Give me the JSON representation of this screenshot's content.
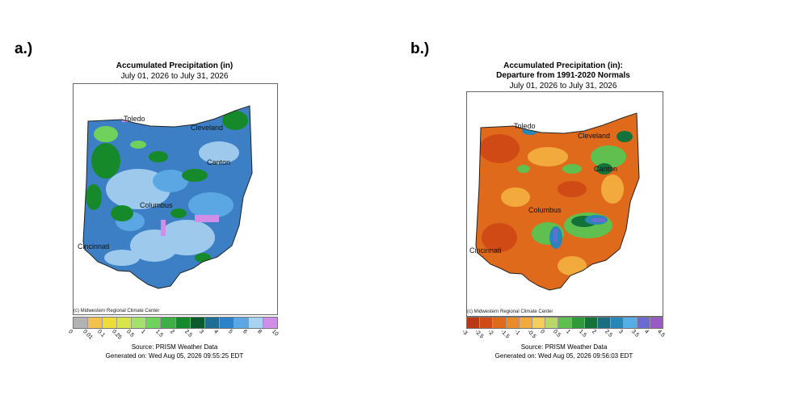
{
  "panel_a": {
    "label": "a.)",
    "title": "Accumulated Precipitation (in)",
    "subtitle": "July 01, 2026 to July 31, 2026",
    "credit": "(c) Midwestern Regional Climate Center",
    "source": "Source: PRISM Weather Data",
    "generated": "Generated on: Wed Aug 05, 2026 09:55:25 EDT",
    "cities": [
      "Toledo",
      "Cleveland",
      "Canton",
      "Columbus",
      "Cincinnati"
    ],
    "legend_colors": [
      "#b2b2b2",
      "#f2c14e",
      "#eedc3b",
      "#d9e34c",
      "#a3e06c",
      "#6fd25a",
      "#3fae45",
      "#168a2a",
      "#0b5a2e",
      "#1f6d94",
      "#2c82c9",
      "#5aa7e3",
      "#a8d2f2",
      "#d18ee8"
    ],
    "legend_ticks": [
      "0",
      "0.01",
      "0.1",
      "0.25",
      "0.5",
      "1",
      "1.5",
      "2",
      "2.5",
      "3",
      "4",
      "5",
      "6",
      "8",
      "10"
    ]
  },
  "panel_b": {
    "label": "b.)",
    "title": "Accumulated Precipitation (in):",
    "title2": "Departure from 1991-2020 Normals",
    "subtitle": "July 01, 2026 to July 31, 2026",
    "credit": "(c) Midwestern Regional Climate Center",
    "source": "Source: PRISM Weather Data",
    "generated": "Generated on: Wed Aug 05, 2026 09:56:03 EDT",
    "cities": [
      "Toledo",
      "Cleveland",
      "Canton",
      "Columbus",
      "Cincinnati"
    ],
    "legend_colors": [
      "#b73a12",
      "#cf4a14",
      "#e06a1c",
      "#ea8a2a",
      "#f2aa3d",
      "#f3cf5a",
      "#b9d66a",
      "#5fc04f",
      "#2f9a3a",
      "#13723a",
      "#1b6e82",
      "#2a86b8",
      "#56aee6",
      "#6b6bd1",
      "#9a5ac6"
    ],
    "legend_ticks": [
      "-3",
      "-2.5",
      "-2",
      "-1.5",
      "-1",
      "-0.5",
      "0",
      "0.5",
      "1",
      "1.5",
      "2",
      "2.5",
      "3",
      "3.5",
      "4",
      "4.5"
    ]
  }
}
